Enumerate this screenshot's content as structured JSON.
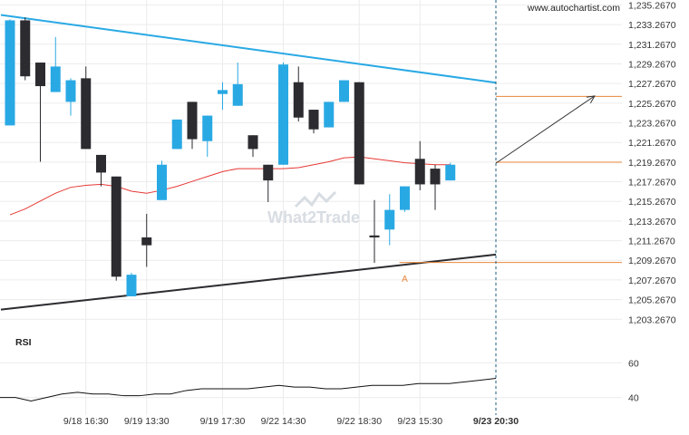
{
  "header": {
    "source": "www.autochartist.com"
  },
  "watermark": {
    "text": "What2Trade"
  },
  "chart_data": {
    "type": "candlestick",
    "y_ticks": [
      "1,235.2670",
      "1,233.2670",
      "1,231.2670",
      "1,229.2670",
      "1,227.2670",
      "1,225.2670",
      "1,223.2670",
      "1,221.2670",
      "1,219.2670",
      "1,217.2670",
      "1,215.2670",
      "1,213.2670",
      "1,211.2670",
      "1,209.2670",
      "1,207.2670",
      "1,205.2670",
      "1,203.2670"
    ],
    "ylim": [
      1202.37,
      1235.77
    ],
    "x_labels": [
      {
        "label": "9/18 16:30",
        "bar": 5
      },
      {
        "label": "9/19 13:30",
        "bar": 9
      },
      {
        "label": "9/19 17:30",
        "bar": 14
      },
      {
        "label": "9/22 14:30",
        "bar": 18
      },
      {
        "label": "9/22 18:30",
        "bar": 23
      },
      {
        "label": "9/23 15:30",
        "bar": 27
      },
      {
        "label": "9/23 20:30",
        "bar": 32
      }
    ],
    "current_time_label": "9/23 20:30",
    "up_color": "#29a9e4",
    "down_color": "#2b2b30",
    "candles": [
      {
        "o": 1223.0,
        "h": 1233.8,
        "l": 1223.0,
        "c": 1233.7
      },
      {
        "o": 1233.7,
        "h": 1234.0,
        "l": 1227.6,
        "c": 1228.0
      },
      {
        "o": 1229.4,
        "h": 1229.4,
        "l": 1219.3,
        "c": 1227.0
      },
      {
        "o": 1226.4,
        "h": 1232.0,
        "l": 1226.4,
        "c": 1229.0
      },
      {
        "o": 1225.4,
        "h": 1227.8,
        "l": 1224.0,
        "c": 1227.6
      },
      {
        "o": 1227.8,
        "h": 1229.0,
        "l": 1220.6,
        "c": 1220.6
      },
      {
        "o": 1220.0,
        "h": 1220.0,
        "l": 1216.8,
        "c": 1218.2
      },
      {
        "o": 1217.8,
        "h": 1217.8,
        "l": 1207.2,
        "c": 1207.6
      },
      {
        "o": 1205.6,
        "h": 1208.0,
        "l": 1205.6,
        "c": 1207.8
      },
      {
        "o": 1211.6,
        "h": 1214.0,
        "l": 1208.6,
        "c": 1210.8
      },
      {
        "o": 1215.4,
        "h": 1219.4,
        "l": 1215.4,
        "c": 1219.0
      },
      {
        "o": 1220.6,
        "h": 1223.6,
        "l": 1220.6,
        "c": 1223.6
      },
      {
        "o": 1225.4,
        "h": 1225.4,
        "l": 1220.6,
        "c": 1221.6
      },
      {
        "o": 1221.4,
        "h": 1224.0,
        "l": 1219.8,
        "c": 1224.0
      },
      {
        "o": 1226.2,
        "h": 1227.4,
        "l": 1224.6,
        "c": 1226.6
      },
      {
        "o": 1225.0,
        "h": 1229.4,
        "l": 1225.0,
        "c": 1227.2
      },
      {
        "o": 1222.0,
        "h": 1222.0,
        "l": 1219.8,
        "c": 1220.6
      },
      {
        "o": 1219.0,
        "h": 1219.0,
        "l": 1215.2,
        "c": 1217.4
      },
      {
        "o": 1219.0,
        "h": 1229.4,
        "l": 1219.0,
        "c": 1229.2
      },
      {
        "o": 1227.4,
        "h": 1229.0,
        "l": 1223.4,
        "c": 1223.8
      },
      {
        "o": 1224.6,
        "h": 1224.6,
        "l": 1222.2,
        "c": 1222.6
      },
      {
        "o": 1222.8,
        "h": 1225.4,
        "l": 1222.8,
        "c": 1225.4
      },
      {
        "o": 1225.4,
        "h": 1227.6,
        "l": 1225.4,
        "c": 1227.6
      },
      {
        "o": 1227.4,
        "h": 1227.4,
        "l": 1217.0,
        "c": 1217.0
      },
      {
        "o": 1211.8,
        "h": 1215.4,
        "l": 1209.0,
        "c": 1211.6
      },
      {
        "o": 1212.4,
        "h": 1216.0,
        "l": 1210.8,
        "c": 1214.4
      },
      {
        "o": 1214.4,
        "h": 1216.8,
        "l": 1214.2,
        "c": 1216.8
      },
      {
        "o": 1219.6,
        "h": 1221.4,
        "l": 1216.4,
        "c": 1217.0
      },
      {
        "o": 1218.6,
        "h": 1219.0,
        "l": 1214.4,
        "c": 1217.0
      },
      {
        "o": 1217.4,
        "h": 1219.2,
        "l": 1217.4,
        "c": 1219.0
      }
    ],
    "moving_average": {
      "color": "#e53935",
      "values": [
        1213.9,
        1214.5,
        1215.3,
        1216.1,
        1216.7,
        1216.9,
        1217.0,
        1216.8,
        1216.3,
        1216.1,
        1216.4,
        1216.8,
        1217.3,
        1217.8,
        1218.3,
        1218.6,
        1218.6,
        1218.6,
        1218.6,
        1218.7,
        1219.0,
        1219.3,
        1219.7,
        1219.8,
        1219.6,
        1219.4,
        1219.2,
        1219.1,
        1219.0,
        1219.0
      ]
    },
    "resistance_line": {
      "color": "#29a9e4",
      "from": {
        "bar": -0.6,
        "y": 1234.25
      },
      "to": {
        "bar": 32,
        "y": 1227.35
      }
    },
    "support_line": {
      "color": "#2b2b30",
      "from": {
        "bar": -0.6,
        "y": 1204.25
      },
      "to": {
        "bar": 32,
        "y": 1209.85
      }
    },
    "levels": [
      {
        "y": 1225.95,
        "color": "#e8863a"
      },
      {
        "y": 1219.25,
        "color": "#e8863a"
      },
      {
        "y": 1209.05,
        "color": "#e8863a"
      }
    ],
    "forecast_arrow": {
      "from": {
        "bar": 32,
        "y": 1219.15
      },
      "to": {
        "bar": 38.5,
        "y": 1226.0
      }
    },
    "point_label": {
      "text": "A",
      "bar": 26,
      "y": 1208.2
    },
    "rsi": {
      "label": "RSI",
      "ticks": [
        "60",
        "40"
      ],
      "ylim": [
        33,
        68
      ],
      "values": [
        40,
        40,
        38,
        40,
        42,
        43,
        42,
        42,
        41,
        41,
        42,
        42,
        44,
        45,
        45,
        45,
        45,
        46,
        47,
        46,
        46,
        45,
        45,
        46,
        47,
        47,
        47,
        48,
        48,
        48,
        49,
        50,
        51
      ]
    }
  }
}
